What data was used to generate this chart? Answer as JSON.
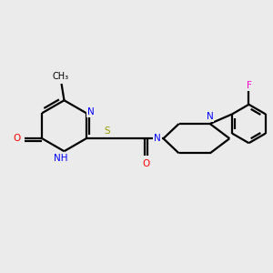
{
  "background_color": "#ebebeb",
  "bond_color": "#000000",
  "N_color": "#0000ff",
  "O_color": "#ff0000",
  "S_color": "#999900",
  "F_color": "#ff00cc",
  "line_width": 1.6,
  "figsize": [
    3.0,
    3.0
  ],
  "dpi": 100,
  "xlim": [
    0,
    10
  ],
  "ylim": [
    0,
    10
  ]
}
